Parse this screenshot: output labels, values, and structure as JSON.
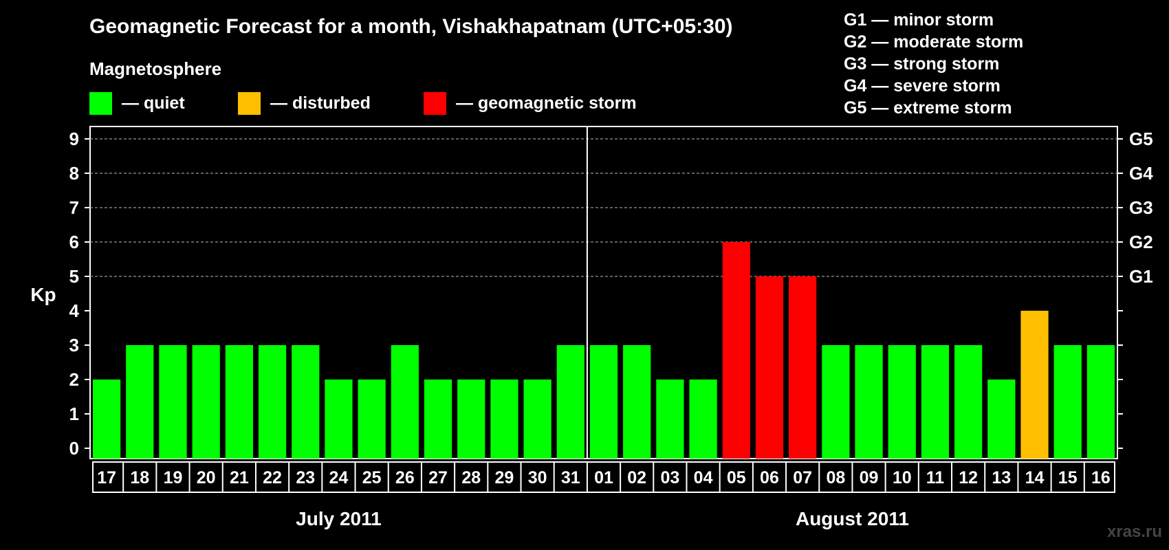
{
  "title": "Geomagnetic Forecast for a month, Vishakhapatnam (UTC+05:30)",
  "legend": {
    "title": "Magnetosphere",
    "items": [
      {
        "label": "— quiet",
        "color": "#00ff00"
      },
      {
        "label": "— disturbed",
        "color": "#ffbf00"
      },
      {
        "label": "— geomagnetic storm",
        "color": "#ff0000"
      }
    ]
  },
  "g_legend": [
    "G1 — minor storm",
    "G2 — moderate storm",
    "G3 — strong storm",
    "G4 — severe storm",
    "G5 — extreme storm"
  ],
  "watermark": "xras.ru",
  "colors": {
    "quiet": "#00ff00",
    "disturbed": "#ffbf00",
    "storm": "#ff0000",
    "background": "#000000",
    "axis": "#ffffff",
    "grid": "#9a9a9a"
  },
  "chart_data": {
    "type": "bar",
    "title": "Geomagnetic Forecast for a month, Vishakhapatnam (UTC+05:30)",
    "ylabel": "Kp",
    "xlabel": "",
    "ylim": [
      0,
      9
    ],
    "yticks": [
      0,
      1,
      2,
      3,
      4,
      5,
      6,
      7,
      8,
      9
    ],
    "right_axis": [
      {
        "value": 5,
        "label": "G1"
      },
      {
        "value": 6,
        "label": "G2"
      },
      {
        "value": 7,
        "label": "G3"
      },
      {
        "value": 8,
        "label": "G4"
      },
      {
        "value": 9,
        "label": "G5"
      }
    ],
    "categories": [
      "17",
      "18",
      "19",
      "20",
      "21",
      "22",
      "23",
      "24",
      "25",
      "26",
      "27",
      "28",
      "29",
      "30",
      "31",
      "01",
      "02",
      "03",
      "04",
      "05",
      "06",
      "07",
      "08",
      "09",
      "10",
      "11",
      "12",
      "13",
      "14",
      "15",
      "16"
    ],
    "values": [
      2,
      3,
      3,
      3,
      3,
      3,
      3,
      2,
      2,
      3,
      2,
      2,
      2,
      2,
      3,
      3,
      3,
      2,
      2,
      6,
      5,
      5,
      3,
      3,
      3,
      3,
      3,
      2,
      4,
      3,
      3
    ],
    "status": [
      "quiet",
      "quiet",
      "quiet",
      "quiet",
      "quiet",
      "quiet",
      "quiet",
      "quiet",
      "quiet",
      "quiet",
      "quiet",
      "quiet",
      "quiet",
      "quiet",
      "quiet",
      "quiet",
      "quiet",
      "quiet",
      "quiet",
      "storm",
      "storm",
      "storm",
      "quiet",
      "quiet",
      "quiet",
      "quiet",
      "quiet",
      "quiet",
      "disturbed",
      "quiet",
      "quiet"
    ],
    "months": [
      {
        "label": "July 2011",
        "start": 0,
        "count": 15
      },
      {
        "label": "August 2011",
        "start": 15,
        "count": 16
      }
    ],
    "grid": true
  }
}
